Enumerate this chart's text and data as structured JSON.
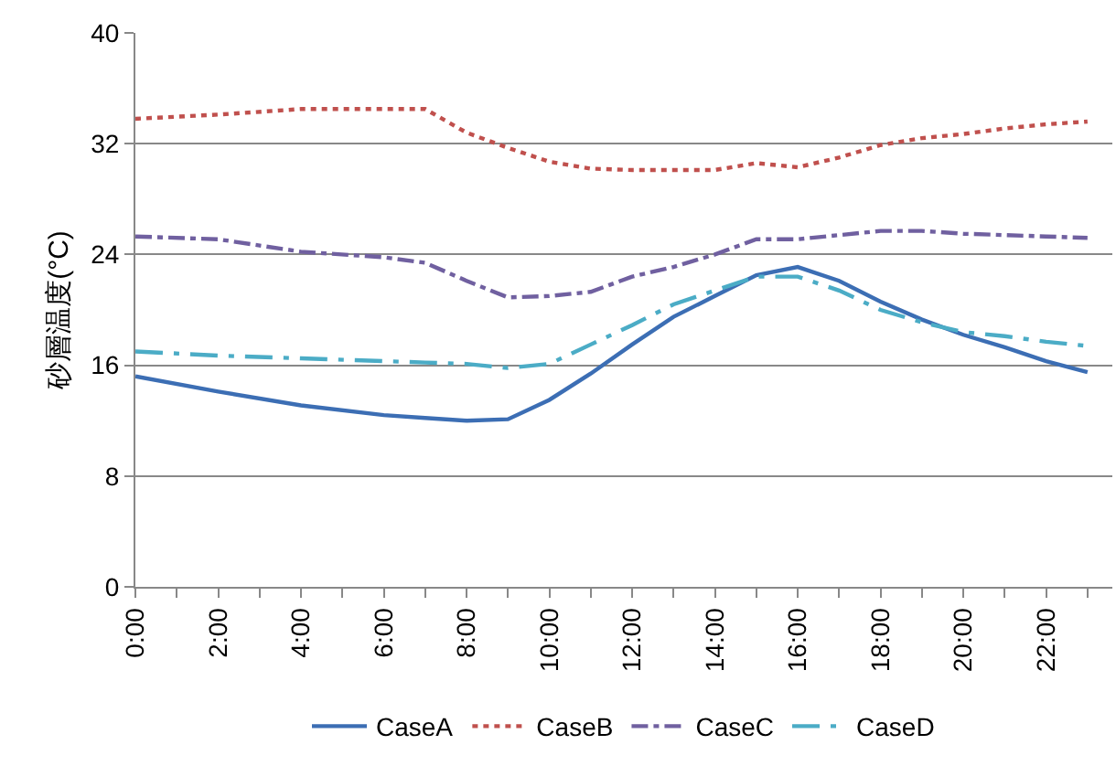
{
  "chart_data": {
    "type": "line",
    "ylabel": "砂層温度(°C)",
    "x": [
      0,
      2,
      4,
      6,
      7,
      8,
      9,
      10,
      11,
      12,
      13,
      14,
      15,
      16,
      17,
      18,
      19,
      20,
      21,
      22,
      23
    ],
    "series": [
      {
        "name": "CaseA",
        "color": "#3c6eb4",
        "line_style": "solid",
        "values": [
          15.2,
          14.1,
          13.1,
          12.4,
          12.2,
          12.0,
          12.1,
          13.5,
          15.4,
          17.5,
          19.5,
          21.0,
          22.5,
          23.1,
          22.1,
          20.6,
          19.3,
          18.2,
          17.3,
          16.3,
          15.5
        ]
      },
      {
        "name": "CaseB",
        "color": "#c0504d",
        "line_style": "dotted",
        "values": [
          33.8,
          34.1,
          34.5,
          34.5,
          34.5,
          32.8,
          31.7,
          30.7,
          30.2,
          30.1,
          30.1,
          30.1,
          30.6,
          30.3,
          31.0,
          31.9,
          32.4,
          32.7,
          33.1,
          33.4,
          33.6
        ]
      },
      {
        "name": "CaseC",
        "color": "#7060a0",
        "line_style": "dashdot",
        "values": [
          25.3,
          25.1,
          24.2,
          23.8,
          23.4,
          22.1,
          20.9,
          21.0,
          21.3,
          22.4,
          23.1,
          24.0,
          25.1,
          25.1,
          25.4,
          25.7,
          25.7,
          25.5,
          25.4,
          25.3,
          25.2
        ]
      },
      {
        "name": "CaseD",
        "color": "#4bacc6",
        "line_style": "longdashdot",
        "values": [
          17.0,
          16.7,
          16.5,
          16.3,
          16.2,
          16.1,
          15.8,
          16.1,
          17.5,
          18.9,
          20.4,
          21.4,
          22.4,
          22.4,
          21.4,
          20.0,
          19.1,
          18.4,
          18.1,
          17.7,
          17.4
        ]
      }
    ],
    "xlim": [
      0,
      23.6
    ],
    "xticks": [
      {
        "value": 0,
        "label": "0:00"
      },
      {
        "value": 1,
        "label": null
      },
      {
        "value": 2,
        "label": "2:00"
      },
      {
        "value": 3,
        "label": null
      },
      {
        "value": 4,
        "label": "4:00"
      },
      {
        "value": 5,
        "label": null
      },
      {
        "value": 6,
        "label": "6:00"
      },
      {
        "value": 7,
        "label": null
      },
      {
        "value": 8,
        "label": "8:00"
      },
      {
        "value": 9,
        "label": null
      },
      {
        "value": 10,
        "label": "10:00"
      },
      {
        "value": 11,
        "label": null
      },
      {
        "value": 12,
        "label": "12:00"
      },
      {
        "value": 13,
        "label": null
      },
      {
        "value": 14,
        "label": "14:00"
      },
      {
        "value": 15,
        "label": null
      },
      {
        "value": 16,
        "label": "16:00"
      },
      {
        "value": 17,
        "label": null
      },
      {
        "value": 18,
        "label": "18:00"
      },
      {
        "value": 19,
        "label": null
      },
      {
        "value": 20,
        "label": "20:00"
      },
      {
        "value": 21,
        "label": null
      },
      {
        "value": 22,
        "label": "22:00"
      },
      {
        "value": 23,
        "label": null
      }
    ],
    "ylim": [
      0,
      40
    ],
    "yticks": [
      0,
      8,
      16,
      24,
      32,
      40
    ],
    "grid": "y",
    "legend": "bottom",
    "marker": "none"
  }
}
